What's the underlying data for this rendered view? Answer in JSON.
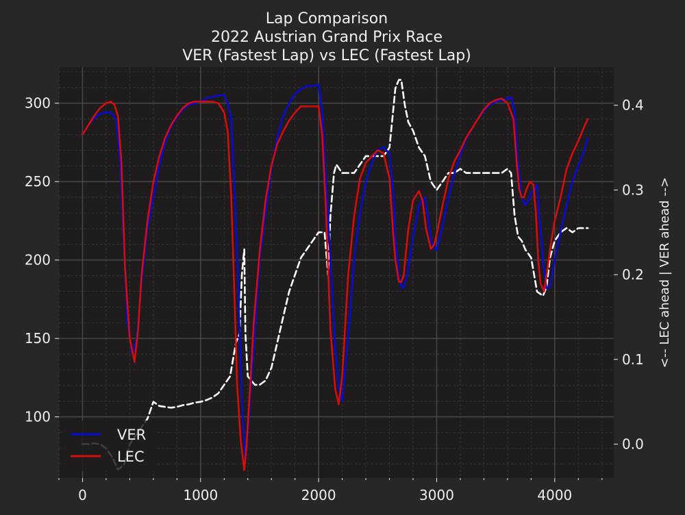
{
  "chart_data": {
    "type": "line",
    "title": [
      "Lap Comparison",
      "2022 Austrian Grand Prix Race",
      "VER (Fastest Lap) vs LEC (Fastest Lap)"
    ],
    "xlabel": "",
    "ylabel": "",
    "ylabel_right": "<-- LEC ahead | VER ahead -->",
    "xlim": [
      -200,
      4500
    ],
    "ylim": [
      61,
      323
    ],
    "ylim_right": [
      -0.04,
      0.445
    ],
    "x_ticks": [
      0,
      1000,
      2000,
      3000,
      4000
    ],
    "y_ticks": [
      100,
      150,
      200,
      250,
      300
    ],
    "y_ticks_right": [
      0.0,
      0.1,
      0.2,
      0.3,
      0.4
    ],
    "y_tick_labels_right": [
      "0.0",
      "0.1",
      "0.2",
      "0.3",
      "0.4"
    ],
    "grid": true,
    "legend_position": "lower-left",
    "series": [
      {
        "name": "VER",
        "color": "#0a0ad2",
        "axis": "left",
        "style": "solid",
        "x": [
          0,
          60,
          120,
          180,
          240,
          280,
          300,
          320,
          350,
          380,
          420,
          460,
          500,
          550,
          600,
          650,
          700,
          750,
          800,
          850,
          900,
          950,
          1000,
          1050,
          1100,
          1150,
          1200,
          1230,
          1260,
          1290,
          1320,
          1350,
          1380,
          1400,
          1450,
          1500,
          1550,
          1600,
          1650,
          1700,
          1750,
          1800,
          1850,
          1900,
          1950,
          2000,
          2030,
          2060,
          2100,
          2140,
          2170,
          2200,
          2250,
          2300,
          2350,
          2400,
          2450,
          2500,
          2550,
          2600,
          2630,
          2650,
          2680,
          2700,
          2720,
          2750,
          2800,
          2850,
          2900,
          2930,
          2960,
          3000,
          3050,
          3100,
          3150,
          3200,
          3250,
          3300,
          3350,
          3400,
          3450,
          3500,
          3550,
          3600,
          3630,
          3660,
          3690,
          3720,
          3750,
          3780,
          3800,
          3830,
          3850,
          3870,
          3900,
          3930,
          3960,
          4000,
          4050,
          4100,
          4150,
          4200,
          4250,
          4280
        ],
        "y": [
          280,
          287,
          292,
          294,
          294,
          290,
          280,
          260,
          210,
          160,
          140,
          150,
          185,
          220,
          240,
          260,
          275,
          285,
          291,
          296,
          299,
          300,
          301,
          303,
          304,
          305,
          305,
          300,
          290,
          240,
          180,
          110,
          72,
          90,
          145,
          200,
          230,
          258,
          278,
          292,
          300,
          306,
          309,
          311,
          311,
          312,
          295,
          255,
          200,
          145,
          118,
          110,
          150,
          200,
          230,
          250,
          262,
          270,
          272,
          268,
          245,
          215,
          190,
          183,
          182,
          190,
          215,
          235,
          240,
          225,
          210,
          206,
          222,
          240,
          255,
          267,
          277,
          284,
          290,
          295,
          299,
          301,
          302,
          303,
          304,
          295,
          260,
          240,
          235,
          238,
          243,
          245,
          248,
          228,
          200,
          182,
          183,
          200,
          218,
          235,
          250,
          260,
          270,
          278
        ]
      },
      {
        "name": "LEC",
        "color": "#d50d0d",
        "axis": "left",
        "style": "solid",
        "x": [
          0,
          50,
          100,
          150,
          200,
          240,
          270,
          300,
          330,
          360,
          400,
          440,
          470,
          500,
          550,
          600,
          650,
          700,
          750,
          800,
          850,
          900,
          950,
          1000,
          1050,
          1100,
          1150,
          1200,
          1230,
          1260,
          1290,
          1310,
          1340,
          1370,
          1390,
          1420,
          1450,
          1500,
          1550,
          1600,
          1650,
          1700,
          1750,
          1800,
          1850,
          1900,
          1950,
          2000,
          2030,
          2060,
          2100,
          2140,
          2170,
          2200,
          2250,
          2300,
          2350,
          2400,
          2450,
          2500,
          2550,
          2600,
          2630,
          2650,
          2680,
          2700,
          2720,
          2760,
          2800,
          2850,
          2880,
          2910,
          2950,
          2980,
          3010,
          3050,
          3100,
          3150,
          3200,
          3250,
          3300,
          3350,
          3400,
          3450,
          3500,
          3550,
          3600,
          3650,
          3680,
          3700,
          3720,
          3740,
          3760,
          3790,
          3820,
          3840,
          3860,
          3880,
          3910,
          3940,
          3970,
          4000,
          4050,
          4100,
          4150,
          4200,
          4250,
          4280
        ],
        "y": [
          280,
          286,
          292,
          297,
          300,
          301,
          299,
          292,
          262,
          195,
          150,
          135,
          155,
          190,
          225,
          250,
          266,
          278,
          286,
          292,
          297,
          300,
          301,
          301,
          301,
          301,
          300,
          294,
          282,
          240,
          170,
          120,
          85,
          66,
          82,
          120,
          160,
          205,
          238,
          260,
          274,
          282,
          289,
          294,
          298,
          298,
          298,
          298,
          280,
          235,
          155,
          118,
          108,
          126,
          190,
          228,
          252,
          262,
          266,
          270,
          268,
          252,
          218,
          200,
          186,
          186,
          190,
          220,
          238,
          244,
          238,
          220,
          207,
          210,
          220,
          235,
          252,
          263,
          270,
          278,
          284,
          290,
          296,
          300,
          302,
          303,
          300,
          290,
          260,
          245,
          240,
          240,
          245,
          250,
          248,
          230,
          200,
          185,
          180,
          195,
          212,
          225,
          240,
          258,
          268,
          276,
          285,
          290
        ]
      },
      {
        "name": "",
        "color": "#ffffff",
        "axis": "right",
        "style": "dashed",
        "x": [
          0,
          50,
          100,
          150,
          200,
          250,
          300,
          350,
          400,
          450,
          500,
          550,
          600,
          650,
          700,
          750,
          800,
          850,
          900,
          950,
          1000,
          1050,
          1100,
          1150,
          1200,
          1250,
          1300,
          1330,
          1350,
          1370,
          1380,
          1400,
          1430,
          1460,
          1500,
          1550,
          1600,
          1650,
          1700,
          1750,
          1800,
          1850,
          1900,
          1950,
          2000,
          2050,
          2080,
          2100,
          2130,
          2150,
          2200,
          2250,
          2300,
          2350,
          2400,
          2450,
          2500,
          2550,
          2600,
          2650,
          2680,
          2700,
          2730,
          2760,
          2800,
          2850,
          2900,
          2950,
          3000,
          3050,
          3100,
          3150,
          3200,
          3250,
          3300,
          3350,
          3400,
          3450,
          3500,
          3550,
          3600,
          3630,
          3660,
          3690,
          3720,
          3750,
          3800,
          3850,
          3900,
          3930,
          3960,
          4000,
          4050,
          4100,
          4150,
          4200,
          4250,
          4280
        ],
        "y": [
          0.0,
          0.0,
          0.001,
          0.0,
          -0.005,
          -0.015,
          -0.03,
          -0.025,
          0.0,
          0.01,
          0.02,
          0.03,
          0.05,
          0.045,
          0.044,
          0.043,
          0.044,
          0.046,
          0.047,
          0.049,
          0.05,
          0.052,
          0.055,
          0.06,
          0.07,
          0.08,
          0.12,
          0.13,
          0.2,
          0.23,
          0.13,
          0.08,
          0.075,
          0.07,
          0.07,
          0.075,
          0.09,
          0.12,
          0.15,
          0.18,
          0.2,
          0.22,
          0.23,
          0.24,
          0.25,
          0.25,
          0.2,
          0.27,
          0.32,
          0.33,
          0.32,
          0.32,
          0.32,
          0.33,
          0.34,
          0.34,
          0.34,
          0.34,
          0.35,
          0.42,
          0.43,
          0.43,
          0.4,
          0.38,
          0.37,
          0.35,
          0.34,
          0.31,
          0.3,
          0.31,
          0.32,
          0.32,
          0.325,
          0.32,
          0.32,
          0.32,
          0.32,
          0.32,
          0.32,
          0.32,
          0.325,
          0.32,
          0.27,
          0.245,
          0.24,
          0.23,
          0.22,
          0.18,
          0.175,
          0.185,
          0.22,
          0.24,
          0.25,
          0.255,
          0.25,
          0.255,
          0.255,
          0.255
        ]
      }
    ]
  },
  "legend": {
    "items": [
      {
        "label": "VER",
        "color": "#0a0ad2"
      },
      {
        "label": "LEC",
        "color": "#d50d0d"
      }
    ]
  },
  "colors": {
    "background": "#292625",
    "plot_background": "#1e1c1c",
    "grid_major": "#4a4848",
    "grid_minor": "#353333",
    "text": "#f0f0f0"
  }
}
